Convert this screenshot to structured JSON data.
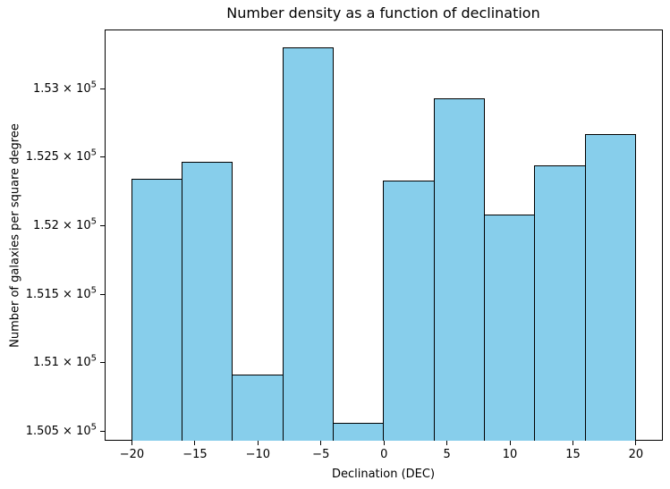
{
  "chart_data": {
    "type": "histogram",
    "title": "Number density as a function of declination",
    "xlabel": "Declination (DEC)",
    "ylabel": "Number of galaxies per square degree",
    "bin_edges": [
      -20,
      -16,
      -12,
      -8,
      -4,
      0,
      4,
      8,
      12,
      16,
      20
    ],
    "values": [
      152345,
      152465,
      150915,
      153300,
      150560,
      152330,
      152930,
      152080,
      152440,
      152670
    ],
    "xlim": [
      -22.2,
      22.1
    ],
    "ylim": [
      150430,
      153435
    ],
    "x_ticks": [
      {
        "value": -20,
        "label": "−20"
      },
      {
        "value": -15,
        "label": "−15"
      },
      {
        "value": -10,
        "label": "−10"
      },
      {
        "value": -5,
        "label": "−5"
      },
      {
        "value": 0,
        "label": "0"
      },
      {
        "value": 5,
        "label": "5"
      },
      {
        "value": 10,
        "label": "10"
      },
      {
        "value": 15,
        "label": "15"
      },
      {
        "value": 20,
        "label": "20"
      }
    ],
    "y_ticks": [
      {
        "value": 150500,
        "label_base": "1.505 × 10",
        "label_exponent": "5"
      },
      {
        "value": 151000,
        "label_base": "1.51 × 10",
        "label_exponent": "5"
      },
      {
        "value": 151500,
        "label_base": "1.515 × 10",
        "label_exponent": "5"
      },
      {
        "value": 152000,
        "label_base": "1.52 × 10",
        "label_exponent": "5"
      },
      {
        "value": 152500,
        "label_base": "1.525 × 10",
        "label_exponent": "5"
      },
      {
        "value": 153000,
        "label_base": "1.53 × 10",
        "label_exponent": "5"
      }
    ],
    "grid": false,
    "legend": null,
    "colors": {
      "bar_fill": "#87CEEB",
      "bar_edge": "#000000",
      "axis": "#000000",
      "text": "#000000",
      "background": "#FFFFFF"
    }
  }
}
